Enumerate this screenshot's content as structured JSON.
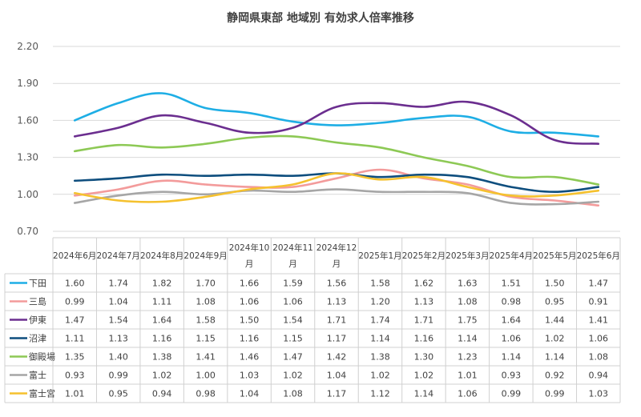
{
  "chart_data": {
    "type": "line",
    "title": "静岡県東部 地域別 有効求人倍率推移",
    "xlabel": "",
    "ylabel": "",
    "ylim": [
      0.7,
      2.2
    ],
    "yticks": [
      "0.70",
      "1.00",
      "1.30",
      "1.60",
      "1.90",
      "2.20"
    ],
    "grid": true,
    "legend": "table-left",
    "categories": [
      "2024年6月",
      "2024年7月",
      "2024年8月",
      "2024年9月",
      [
        "2024年10",
        "月"
      ],
      [
        "2024年11",
        "月"
      ],
      [
        "2024年12",
        "月"
      ],
      "2025年1月",
      "2025年2月",
      "2025年3月",
      "2025年4月",
      "2025年5月",
      "2025年6月"
    ],
    "series": [
      {
        "name": "下田",
        "color": "#1EAEE5",
        "values": [
          1.6,
          1.74,
          1.82,
          1.7,
          1.66,
          1.59,
          1.56,
          1.58,
          1.62,
          1.63,
          1.51,
          1.5,
          1.47
        ]
      },
      {
        "name": "三島",
        "color": "#F39B9B",
        "values": [
          0.99,
          1.04,
          1.11,
          1.08,
          1.06,
          1.06,
          1.13,
          1.2,
          1.13,
          1.08,
          0.98,
          0.95,
          0.91
        ]
      },
      {
        "name": "伊東",
        "color": "#6B2E8F",
        "values": [
          1.47,
          1.54,
          1.64,
          1.58,
          1.5,
          1.54,
          1.71,
          1.74,
          1.71,
          1.75,
          1.64,
          1.44,
          1.41
        ]
      },
      {
        "name": "沼津",
        "color": "#0E4E7E",
        "values": [
          1.11,
          1.13,
          1.16,
          1.15,
          1.16,
          1.15,
          1.17,
          1.14,
          1.16,
          1.14,
          1.06,
          1.02,
          1.06
        ]
      },
      {
        "name": "御殿場",
        "color": "#8DC955",
        "values": [
          1.35,
          1.4,
          1.38,
          1.41,
          1.46,
          1.47,
          1.42,
          1.38,
          1.3,
          1.23,
          1.14,
          1.14,
          1.08
        ]
      },
      {
        "name": "富士",
        "color": "#A6A6A6",
        "values": [
          0.93,
          0.99,
          1.02,
          1.0,
          1.03,
          1.02,
          1.04,
          1.02,
          1.02,
          1.01,
          0.93,
          0.92,
          0.94
        ]
      },
      {
        "name": "富士宮",
        "color": "#F5C12E",
        "values": [
          1.01,
          0.95,
          0.94,
          0.98,
          1.04,
          1.08,
          1.17,
          1.12,
          1.14,
          1.06,
          0.99,
          0.99,
          1.03
        ]
      }
    ],
    "table_values": [
      [
        "1.60",
        "1.74",
        "1.82",
        "1.70",
        "1.66",
        "1.59",
        "1.56",
        "1.58",
        "1.62",
        "1.63",
        "1.51",
        "1.50",
        "1.47"
      ],
      [
        "0.99",
        "1.04",
        "1.11",
        "1.08",
        "1.06",
        "1.06",
        "1.13",
        "1.20",
        "1.13",
        "1.08",
        "0.98",
        "0.95",
        "0.91"
      ],
      [
        "1.47",
        "1.54",
        "1.64",
        "1.58",
        "1.50",
        "1.54",
        "1.71",
        "1.74",
        "1.71",
        "1.75",
        "1.64",
        "1.44",
        "1.41"
      ],
      [
        "1.11",
        "1.13",
        "1.16",
        "1.15",
        "1.16",
        "1.15",
        "1.17",
        "1.14",
        "1.16",
        "1.14",
        "1.06",
        "1.02",
        "1.06"
      ],
      [
        "1.35",
        "1.40",
        "1.38",
        "1.41",
        "1.46",
        "1.47",
        "1.42",
        "1.38",
        "1.30",
        "1.23",
        "1.14",
        "1.14",
        "1.08"
      ],
      [
        "0.93",
        "0.99",
        "1.02",
        "1.00",
        "1.03",
        "1.02",
        "1.04",
        "1.02",
        "1.02",
        "1.01",
        "0.93",
        "0.92",
        "0.94"
      ],
      [
        "1.01",
        "0.95",
        "0.94",
        "0.98",
        "1.04",
        "1.08",
        "1.17",
        "1.12",
        "1.14",
        "1.06",
        "0.99",
        "0.99",
        "1.03"
      ]
    ]
  }
}
